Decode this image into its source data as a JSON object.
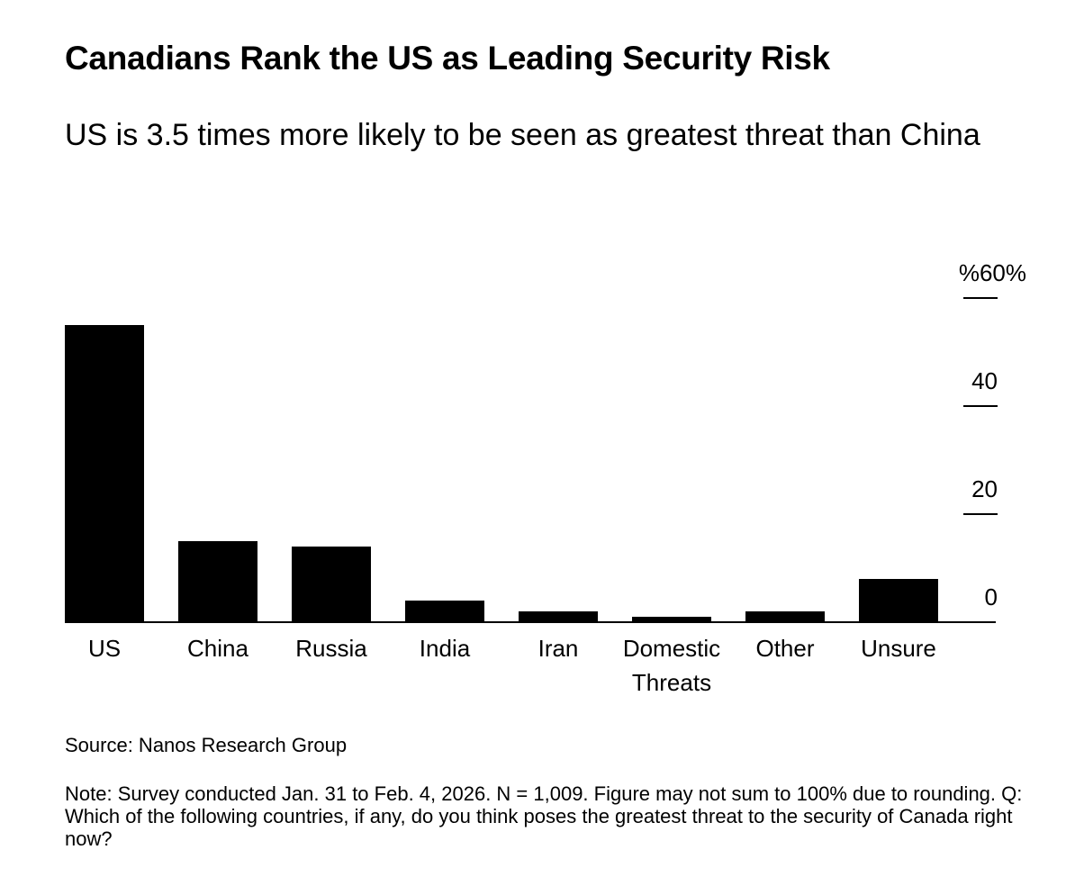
{
  "title": "Canadians Rank the US as Leading Security Risk",
  "subtitle": "US is 3.5 times more likely to be seen as greatest threat than China",
  "source": "Source: Nanos Research Group",
  "note": "Note: Survey conducted Jan. 31 to Feb. 4, 2026. N = 1,009. Figure may not sum to 100% due to rounding. Q: Which of the following countries, if any, do you think poses the greatest threat to the security of Canada right now?",
  "chart_data": {
    "type": "bar",
    "title": "Canadians Rank the US as Leading Security Risk",
    "categories": [
      "US",
      "China",
      "Russia",
      "India",
      "Iran",
      "Domestic Threats",
      "Other",
      "Unsure"
    ],
    "category_lines": [
      [
        "US"
      ],
      [
        "China"
      ],
      [
        "Russia"
      ],
      [
        "India"
      ],
      [
        "Iran"
      ],
      [
        "Domestic",
        "Threats"
      ],
      [
        "Other"
      ],
      [
        "Unsure"
      ]
    ],
    "values": [
      55,
      15,
      14,
      4,
      2,
      1,
      2,
      8
    ],
    "ylabel": "%",
    "ylim": [
      0,
      60
    ],
    "yticks": [
      0,
      20,
      40,
      60
    ],
    "ytick_labels": [
      "0",
      "20",
      "40",
      "%60%"
    ],
    "axis_side": "right",
    "bar_color": "#000000"
  }
}
